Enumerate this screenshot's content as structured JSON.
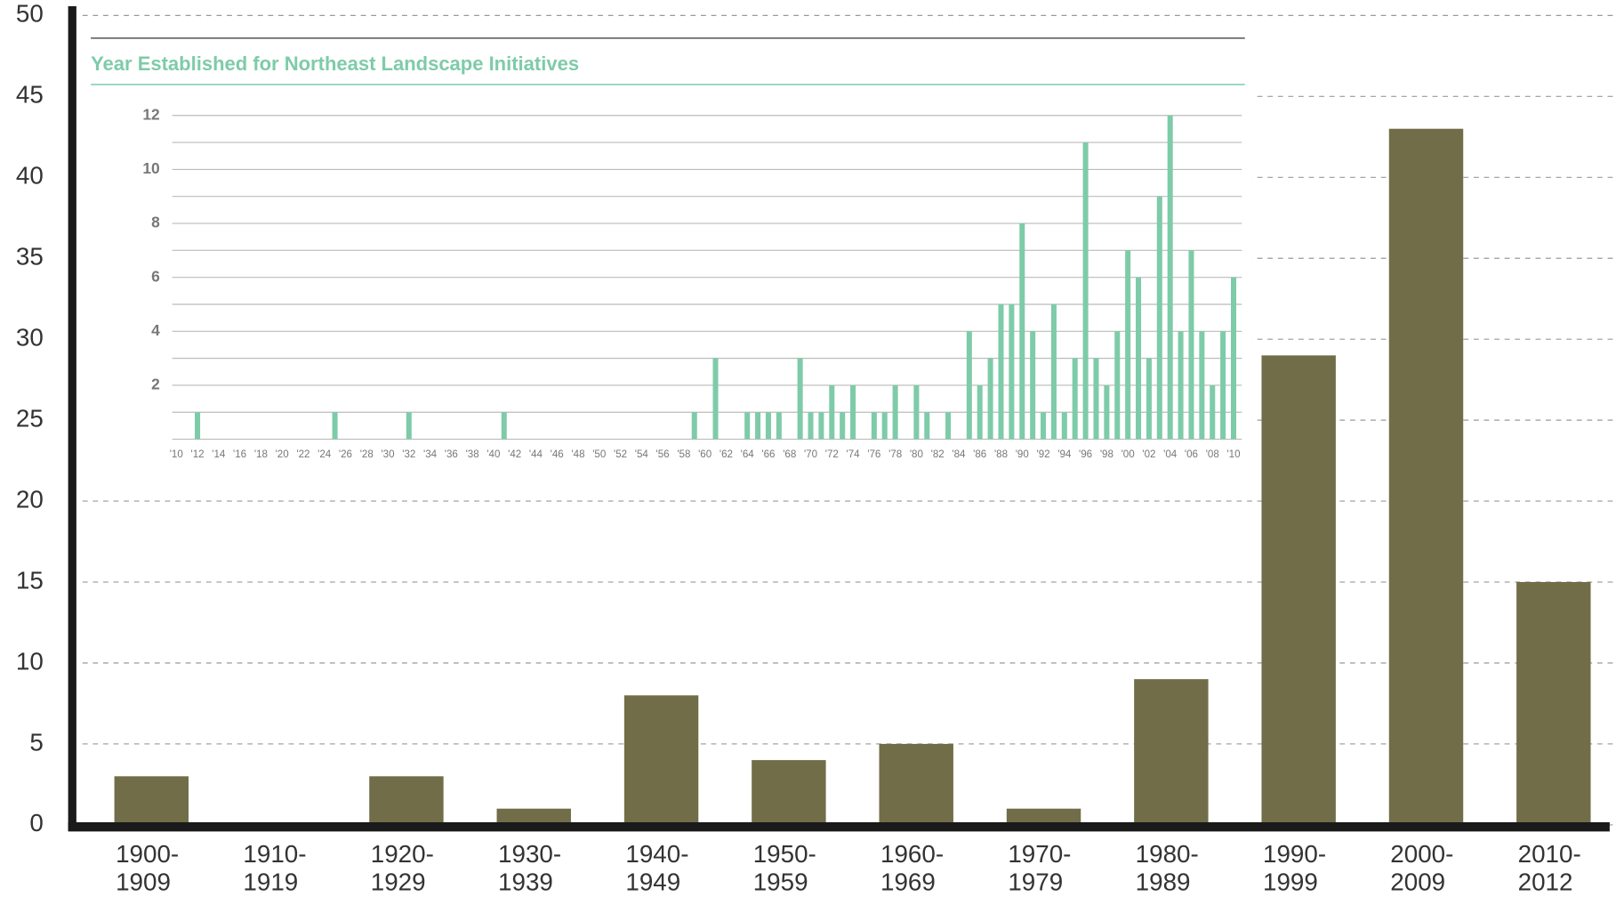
{
  "chart_data": [
    {
      "type": "bar",
      "categories": [
        [
          "1900-",
          "1909"
        ],
        [
          "1910-",
          "1919"
        ],
        [
          "1920-",
          "1929"
        ],
        [
          "1930-",
          "1939"
        ],
        [
          "1940-",
          "1949"
        ],
        [
          "1950-",
          "1959"
        ],
        [
          "1960-",
          "1969"
        ],
        [
          "1970-",
          "1979"
        ],
        [
          "1980-",
          "1989"
        ],
        [
          "1990-",
          "1999"
        ],
        [
          "2000-",
          "2009"
        ],
        [
          "2010-",
          "2012"
        ]
      ],
      "values": [
        3,
        0,
        3,
        1,
        8,
        4,
        5,
        1,
        9,
        29,
        43,
        15
      ],
      "color": "#716d48",
      "ylim": [
        0,
        50
      ],
      "yticks": [
        0,
        5,
        10,
        15,
        20,
        25,
        30,
        35,
        40,
        45,
        50
      ],
      "grid": true
    },
    {
      "type": "bar",
      "title": "Year Established for Northeast Landscape Initiatives",
      "x": [
        1912,
        1925,
        1932,
        1941,
        1959,
        1961,
        1964,
        1965,
        1966,
        1967,
        1969,
        1970,
        1971,
        1972,
        1973,
        1974,
        1976,
        1977,
        1978,
        1980,
        1981,
        1983,
        1985,
        1986,
        1987,
        1988,
        1989,
        1990,
        1991,
        1992,
        1993,
        1994,
        1995,
        1996,
        1997,
        1998,
        1999,
        2000,
        2001,
        2002,
        2003,
        2004,
        2005,
        2006,
        2007,
        2008,
        2009,
        2010
      ],
      "values": [
        1,
        1,
        1,
        1,
        1,
        3,
        1,
        1,
        1,
        1,
        3,
        1,
        1,
        2,
        1,
        2,
        1,
        1,
        2,
        2,
        1,
        1,
        4,
        2,
        3,
        5,
        5,
        8,
        4,
        1,
        5,
        1,
        3,
        11,
        3,
        2,
        4,
        7,
        6,
        3,
        9,
        12,
        4,
        7,
        4,
        2,
        4,
        6
      ],
      "color": "#7ecba9",
      "xlim": [
        1910,
        2010
      ],
      "xticks": [
        {
          "value": 1910,
          "label": "'10"
        },
        {
          "value": 1912,
          "label": "'12"
        },
        {
          "value": 1914,
          "label": "'14"
        },
        {
          "value": 1916,
          "label": "'16"
        },
        {
          "value": 1918,
          "label": "'18"
        },
        {
          "value": 1920,
          "label": "'20"
        },
        {
          "value": 1922,
          "label": "'22"
        },
        {
          "value": 1924,
          "label": "'24"
        },
        {
          "value": 1926,
          "label": "'26"
        },
        {
          "value": 1928,
          "label": "'28"
        },
        {
          "value": 1930,
          "label": "'30"
        },
        {
          "value": 1932,
          "label": "'32"
        },
        {
          "value": 1934,
          "label": "'34"
        },
        {
          "value": 1936,
          "label": "'36"
        },
        {
          "value": 1938,
          "label": "'38"
        },
        {
          "value": 1940,
          "label": "'40"
        },
        {
          "value": 1942,
          "label": "'42"
        },
        {
          "value": 1944,
          "label": "'44"
        },
        {
          "value": 1946,
          "label": "'46"
        },
        {
          "value": 1948,
          "label": "'48"
        },
        {
          "value": 1950,
          "label": "'50"
        },
        {
          "value": 1952,
          "label": "'52"
        },
        {
          "value": 1954,
          "label": "'54"
        },
        {
          "value": 1956,
          "label": "'56"
        },
        {
          "value": 1958,
          "label": "'58"
        },
        {
          "value": 1960,
          "label": "'60"
        },
        {
          "value": 1962,
          "label": "'62"
        },
        {
          "value": 1964,
          "label": "'64"
        },
        {
          "value": 1966,
          "label": "'66"
        },
        {
          "value": 1968,
          "label": "'68"
        },
        {
          "value": 1970,
          "label": "'70"
        },
        {
          "value": 1972,
          "label": "'72"
        },
        {
          "value": 1974,
          "label": "'74"
        },
        {
          "value": 1976,
          "label": "'76"
        },
        {
          "value": 1978,
          "label": "'78"
        },
        {
          "value": 1980,
          "label": "'80"
        },
        {
          "value": 1982,
          "label": "'82"
        },
        {
          "value": 1984,
          "label": "'84"
        },
        {
          "value": 1986,
          "label": "'86"
        },
        {
          "value": 1988,
          "label": "'88"
        },
        {
          "value": 1990,
          "label": "'90"
        },
        {
          "value": 1992,
          "label": "'92"
        },
        {
          "value": 1994,
          "label": "'94"
        },
        {
          "value": 1996,
          "label": "'96"
        },
        {
          "value": 1998,
          "label": "'98"
        },
        {
          "value": 2000,
          "label": "'00"
        },
        {
          "value": 2002,
          "label": "'02"
        },
        {
          "value": 2004,
          "label": "'04"
        },
        {
          "value": 2006,
          "label": "'06"
        },
        {
          "value": 2008,
          "label": "'08"
        },
        {
          "value": 2010,
          "label": "'10"
        }
      ],
      "ylim": [
        0,
        12
      ],
      "yticks": [
        2,
        4,
        6,
        8,
        10,
        12
      ],
      "yminorticks": [
        0,
        1,
        3,
        5,
        7,
        9,
        11
      ],
      "grid": true
    }
  ]
}
